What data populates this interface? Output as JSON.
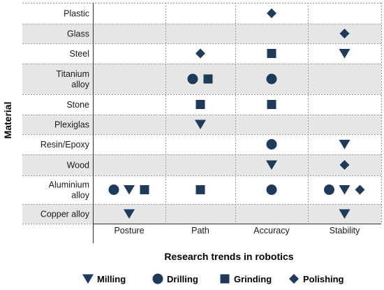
{
  "chart_data": {
    "type": "scatter",
    "ylabel": "Material",
    "xlabel": "Research trends in robotics",
    "rows": [
      {
        "label": [
          "Plastic"
        ]
      },
      {
        "label": [
          "Glass"
        ]
      },
      {
        "label": [
          "Steel"
        ]
      },
      {
        "label": [
          "Titanium",
          "alloy"
        ]
      },
      {
        "label": [
          "Stone"
        ]
      },
      {
        "label": [
          "Plexiglas"
        ]
      },
      {
        "label": [
          "Resin/Epoxy"
        ]
      },
      {
        "label": [
          "Wood"
        ]
      },
      {
        "label": [
          "Aluminium",
          "alloy"
        ]
      },
      {
        "label": [
          "Copper alloy"
        ]
      }
    ],
    "columns": [
      "Posture",
      "Path",
      "Accuracy",
      "Stability"
    ],
    "legend": [
      {
        "key": "milling",
        "label": "Milling",
        "marker": "triangle-down"
      },
      {
        "key": "drilling",
        "label": "Drilling",
        "marker": "circle"
      },
      {
        "key": "grinding",
        "label": "Grinding",
        "marker": "square"
      },
      {
        "key": "polishing",
        "label": "Polishing",
        "marker": "diamond"
      }
    ],
    "points": [
      {
        "material": "Plastic",
        "trend": "Accuracy",
        "process": [
          "polishing"
        ]
      },
      {
        "material": "Glass",
        "trend": "Stability",
        "process": [
          "polishing"
        ]
      },
      {
        "material": "Steel",
        "trend": "Path",
        "process": [
          "polishing"
        ]
      },
      {
        "material": "Steel",
        "trend": "Accuracy",
        "process": [
          "grinding"
        ]
      },
      {
        "material": "Steel",
        "trend": "Stability",
        "process": [
          "milling"
        ]
      },
      {
        "material": "Titanium alloy",
        "trend": "Path",
        "process": [
          "drilling",
          "grinding"
        ]
      },
      {
        "material": "Titanium alloy",
        "trend": "Accuracy",
        "process": [
          "drilling"
        ]
      },
      {
        "material": "Stone",
        "trend": "Path",
        "process": [
          "grinding"
        ]
      },
      {
        "material": "Stone",
        "trend": "Accuracy",
        "process": [
          "grinding"
        ]
      },
      {
        "material": "Plexiglas",
        "trend": "Path",
        "process": [
          "milling"
        ]
      },
      {
        "material": "Resin/Epoxy",
        "trend": "Accuracy",
        "process": [
          "drilling"
        ]
      },
      {
        "material": "Resin/Epoxy",
        "trend": "Stability",
        "process": [
          "milling"
        ]
      },
      {
        "material": "Wood",
        "trend": "Accuracy",
        "process": [
          "milling"
        ]
      },
      {
        "material": "Wood",
        "trend": "Stability",
        "process": [
          "polishing"
        ]
      },
      {
        "material": "Aluminium alloy",
        "trend": "Posture",
        "process": [
          "drilling",
          "milling",
          "grinding"
        ]
      },
      {
        "material": "Aluminium alloy",
        "trend": "Path",
        "process": [
          "grinding"
        ]
      },
      {
        "material": "Aluminium alloy",
        "trend": "Accuracy",
        "process": [
          "drilling"
        ]
      },
      {
        "material": "Aluminium alloy",
        "trend": "Stability",
        "process": [
          "drilling",
          "milling",
          "polishing"
        ]
      },
      {
        "material": "Copper alloy",
        "trend": "Posture",
        "process": [
          "milling"
        ]
      },
      {
        "material": "Copper alloy",
        "trend": "Stability",
        "process": [
          "milling"
        ]
      }
    ],
    "colors": {
      "marker": "#1f3b5c",
      "band": "#e6e6e6",
      "grid": "#9a9a9a"
    },
    "grid": true,
    "legend_position": "bottom"
  }
}
